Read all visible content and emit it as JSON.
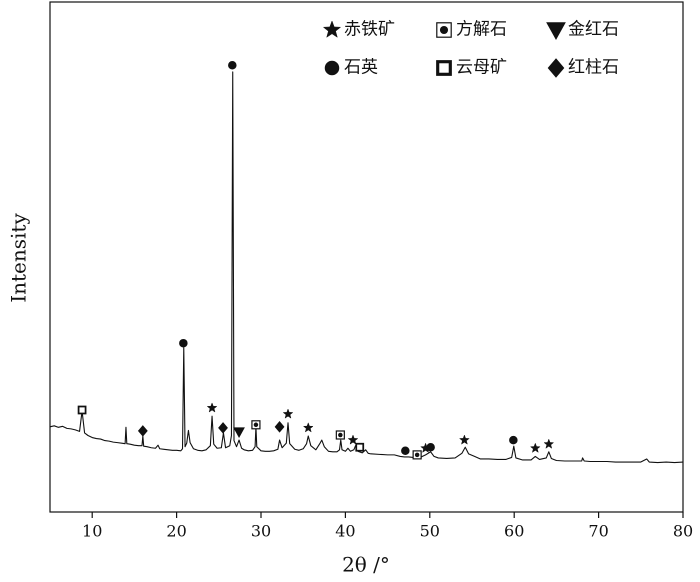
{
  "chart_data": {
    "type": "line",
    "x_label": "2θ /°",
    "y_label": "Intensity",
    "xlim": [
      5,
      80
    ],
    "xticks": [
      10,
      20,
      30,
      40,
      50,
      60,
      70,
      80
    ],
    "ylim": [
      0,
      100
    ],
    "color": "#111111",
    "x": [
      5,
      5.5,
      6,
      6.5,
      7,
      7.5,
      8,
      8.5,
      8.8,
      9.1,
      9.5,
      10,
      10.5,
      11,
      11.5,
      12,
      12.5,
      13,
      13.5,
      13.9,
      14.0,
      14.1,
      14.5,
      15,
      15.5,
      15.9,
      16.0,
      16.1,
      16.5,
      17,
      17.5,
      17.8,
      18,
      18.5,
      19,
      19.5,
      20,
      20.5,
      20.7,
      20.85,
      21.0,
      21.2,
      21.4,
      21.6,
      22,
      22.5,
      23,
      23.5,
      24.0,
      24.2,
      24.4,
      24.8,
      25.3,
      25.55,
      25.8,
      26.3,
      26.5,
      26.65,
      26.8,
      27.1,
      27.4,
      27.7,
      28,
      28.5,
      29,
      29.3,
      29.4,
      29.5,
      30,
      30.5,
      31,
      31.5,
      32,
      32.2,
      32.5,
      33.0,
      33.2,
      33.4,
      34,
      34.5,
      35,
      35.4,
      35.6,
      35.9,
      36.5,
      37,
      37.2,
      37.5,
      38,
      38.5,
      39,
      39.3,
      39.45,
      39.6,
      40,
      40.3,
      40.6,
      41,
      41.2,
      41.5,
      42,
      42.4,
      42.7,
      43,
      44,
      45,
      45.8,
      46.5,
      47,
      47.5,
      48,
      48.5,
      49,
      49.5,
      50.1,
      50.5,
      51,
      52,
      53,
      53.8,
      54.2,
      54.6,
      55.3,
      56,
      57,
      58,
      59,
      59.7,
      59.95,
      60.2,
      61,
      62,
      62.5,
      63,
      63.8,
      64.1,
      64.4,
      65,
      66,
      67,
      68,
      68.1,
      68.3,
      69,
      70,
      71,
      72,
      73,
      74,
      75,
      75.7,
      76,
      77,
      78,
      79,
      80
    ],
    "values": [
      16.7,
      16.9,
      16.6,
      16.8,
      16.4,
      16.3,
      16.1,
      15.8,
      19.8,
      15.5,
      15.0,
      14.6,
      14.4,
      14.3,
      14.0,
      13.9,
      13.7,
      13.6,
      13.5,
      13.4,
      16.6,
      13.4,
      13.3,
      13.1,
      13.0,
      13.0,
      14.9,
      12.9,
      12.8,
      12.6,
      12.5,
      13.1,
      12.4,
      12.3,
      12.2,
      12.1,
      12.1,
      12.0,
      12.4,
      32.2,
      12.8,
      13.5,
      16.0,
      13.6,
      12.4,
      12.1,
      12.0,
      12.2,
      13.0,
      18.8,
      13.3,
      12.5,
      12.6,
      15.5,
      12.6,
      13.0,
      15.0,
      86.3,
      14.0,
      12.8,
      14.1,
      12.5,
      12.2,
      12.0,
      12.1,
      12.8,
      16.7,
      12.8,
      12.0,
      11.9,
      11.9,
      12.0,
      12.3,
      14.1,
      12.6,
      13.5,
      17.5,
      13.4,
      12.3,
      12.1,
      12.4,
      13.4,
      14.9,
      13.0,
      12.2,
      13.5,
      14.1,
      12.8,
      11.9,
      11.8,
      11.8,
      12.2,
      14.1,
      12.2,
      11.9,
      12.5,
      11.9,
      12.2,
      13.0,
      11.9,
      11.6,
      12.2,
      11.5,
      11.4,
      11.3,
      11.2,
      11.2,
      10.9,
      10.8,
      10.8,
      10.7,
      10.8,
      10.8,
      11.2,
      11.8,
      10.9,
      10.6,
      10.5,
      10.6,
      11.5,
      12.7,
      11.4,
      10.9,
      10.4,
      10.4,
      10.3,
      10.3,
      10.7,
      12.9,
      10.6,
      10.2,
      10.2,
      10.9,
      10.3,
      10.6,
      11.8,
      10.5,
      10.1,
      10.0,
      10.0,
      10.0,
      10.6,
      10.0,
      9.9,
      9.9,
      9.9,
      9.8,
      9.8,
      9.8,
      9.8,
      10.4,
      9.8,
      9.7,
      9.8,
      9.7,
      9.8
    ],
    "phases": [
      {
        "name": "赤铁矿",
        "symbol": "star",
        "x": [
          24.2,
          33.2,
          35.6,
          40.9,
          49.5,
          54.1,
          62.5,
          64.1
        ],
        "y": [
          20.4,
          19.2,
          16.5,
          14.1,
          12.5,
          14.1,
          12.5,
          13.3
        ]
      },
      {
        "name": "方解石",
        "symbol": "square-circle",
        "x": [
          29.4,
          39.4,
          48.5
        ],
        "y": [
          17.1,
          15.1,
          11.2
        ]
      },
      {
        "name": "金红石",
        "symbol": "triangle-down",
        "x": [
          27.4
        ],
        "y": [
          15.7
        ]
      },
      {
        "name": "石英",
        "symbol": "circle",
        "x": [
          26.6,
          20.8,
          47.1,
          50.1,
          59.9
        ],
        "y": [
          87.6,
          33.1,
          12.0,
          12.7,
          14.1
        ]
      },
      {
        "name": "云母矿",
        "symbol": "square",
        "x": [
          8.8,
          41.7
        ],
        "y": [
          20.0,
          12.7
        ]
      },
      {
        "name": "红柱石",
        "symbol": "diamond",
        "x": [
          16.0,
          25.5,
          32.2
        ],
        "y": [
          15.9,
          16.5,
          16.7
        ]
      }
    ]
  }
}
